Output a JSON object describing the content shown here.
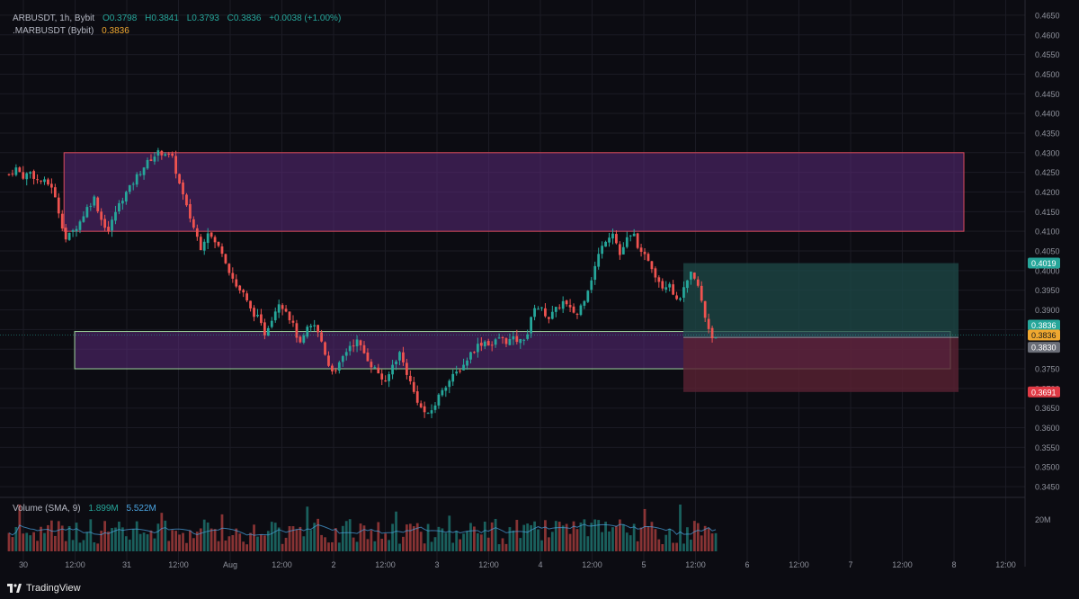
{
  "header": {
    "symbol": "ARBUSDT, 1h, Bybit",
    "open": "O0.3798",
    "high": "H0.3841",
    "low": "L0.3793",
    "close": "C0.3836",
    "change": "+0.0038 (+1.00%)",
    "mark_label": ".MARBUSDT (Bybit)",
    "mark_value": "0.3836"
  },
  "volume_header": {
    "label": "Volume (SMA, 9)",
    "value1": "1.899M",
    "value2": "5.522M"
  },
  "volume_axis_label": "20M",
  "brand": {
    "name": "TradingView"
  },
  "colors": {
    "background": "#0c0c12",
    "up": "#26a69a",
    "down": "#ef5350",
    "zone_fill": "#5b2a7a",
    "profit_fill": "#1e4a48",
    "loss_fill": "#5a2233",
    "tag_green": "#26a69a",
    "tag_orange": "#f0a830",
    "tag_gray": "#6b6e78",
    "tag_red": "#e03a45"
  },
  "chart_data": {
    "type": "candlestick",
    "timeframe": "1h",
    "ylim": [
      0.3425,
      0.4675
    ],
    "y_ticks": [
      "0.4650",
      "0.4600",
      "0.4550",
      "0.4500",
      "0.4450",
      "0.4400",
      "0.4350",
      "0.4300",
      "0.4250",
      "0.4200",
      "0.4150",
      "0.4100",
      "0.4050",
      "0.4000",
      "0.3950",
      "0.3900",
      "0.3850",
      "0.3800",
      "0.3750",
      "0.3700",
      "0.3650",
      "0.3600",
      "0.3550",
      "0.3500",
      "0.3450"
    ],
    "x_ticks": [
      "30",
      "12:00",
      "31",
      "12:00",
      "Aug",
      "12:00",
      "2",
      "12:00",
      "3",
      "12:00",
      "4",
      "12:00",
      "5",
      "12:00",
      "6",
      "12:00",
      "7",
      "12:00",
      "8",
      "12:00"
    ],
    "close_path": [
      [
        0,
        0.4245
      ],
      [
        2,
        0.426
      ],
      [
        4,
        0.424
      ],
      [
        6,
        0.425
      ],
      [
        8,
        0.423
      ],
      [
        10,
        0.4225
      ],
      [
        12,
        0.4215
      ],
      [
        14,
        0.415
      ],
      [
        16,
        0.408
      ],
      [
        18,
        0.41
      ],
      [
        20,
        0.4125
      ],
      [
        22,
        0.416
      ],
      [
        24,
        0.4185
      ],
      [
        26,
        0.413
      ],
      [
        28,
        0.41
      ],
      [
        30,
        0.415
      ],
      [
        32,
        0.4185
      ],
      [
        34,
        0.421
      ],
      [
        36,
        0.424
      ],
      [
        38,
        0.4265
      ],
      [
        40,
        0.4285
      ],
      [
        42,
        0.43
      ],
      [
        44,
        0.43
      ],
      [
        46,
        0.4285
      ],
      [
        48,
        0.422
      ],
      [
        50,
        0.416
      ],
      [
        52,
        0.411
      ],
      [
        54,
        0.406
      ],
      [
        56,
        0.41
      ],
      [
        58,
        0.407
      ],
      [
        60,
        0.405
      ],
      [
        62,
        0.4
      ],
      [
        64,
        0.396
      ],
      [
        66,
        0.394
      ],
      [
        68,
        0.39
      ],
      [
        70,
        0.388
      ],
      [
        72,
        0.384
      ],
      [
        74,
        0.388
      ],
      [
        76,
        0.392
      ],
      [
        78,
        0.39
      ],
      [
        80,
        0.386
      ],
      [
        82,
        0.381
      ],
      [
        84,
        0.385
      ],
      [
        86,
        0.386
      ],
      [
        88,
        0.382
      ],
      [
        90,
        0.376
      ],
      [
        92,
        0.374
      ],
      [
        94,
        0.378
      ],
      [
        96,
        0.381
      ],
      [
        98,
        0.382
      ],
      [
        100,
        0.379
      ],
      [
        102,
        0.376
      ],
      [
        104,
        0.374
      ],
      [
        106,
        0.371
      ],
      [
        108,
        0.376
      ],
      [
        110,
        0.379
      ],
      [
        112,
        0.374
      ],
      [
        114,
        0.369
      ],
      [
        116,
        0.365
      ],
      [
        118,
        0.363
      ],
      [
        120,
        0.366
      ],
      [
        122,
        0.37
      ],
      [
        124,
        0.372
      ],
      [
        126,
        0.374
      ],
      [
        128,
        0.376
      ],
      [
        130,
        0.379
      ],
      [
        132,
        0.381
      ],
      [
        134,
        0.382
      ],
      [
        136,
        0.381
      ],
      [
        138,
        0.383
      ],
      [
        140,
        0.382
      ],
      [
        142,
        0.3825
      ],
      [
        144,
        0.382
      ],
      [
        146,
        0.384
      ],
      [
        148,
        0.391
      ],
      [
        150,
        0.39
      ],
      [
        152,
        0.388
      ],
      [
        154,
        0.39
      ],
      [
        156,
        0.392
      ],
      [
        158,
        0.39
      ],
      [
        160,
        0.389
      ],
      [
        162,
        0.393
      ],
      [
        164,
        0.398
      ],
      [
        166,
        0.404
      ],
      [
        168,
        0.408
      ],
      [
        170,
        0.41
      ],
      [
        172,
        0.404
      ],
      [
        174,
        0.408
      ],
      [
        176,
        0.409
      ],
      [
        178,
        0.404
      ],
      [
        180,
        0.403
      ],
      [
        182,
        0.399
      ],
      [
        184,
        0.396
      ],
      [
        186,
        0.397
      ],
      [
        188,
        0.392
      ],
      [
        190,
        0.395
      ],
      [
        192,
        0.399
      ],
      [
        194,
        0.396
      ],
      [
        196,
        0.388
      ],
      [
        198,
        0.383
      ],
      [
        199,
        0.3836
      ]
    ],
    "zones": [
      {
        "type": "resistance",
        "from_bar": 16,
        "to_bar": "future",
        "y_top": 0.43,
        "y_bottom": 0.41
      },
      {
        "type": "support",
        "from_bar": 19,
        "to_bar": "future",
        "y_top": 0.3845,
        "y_bottom": 0.375
      }
    ],
    "position": {
      "side": "long",
      "entry": 0.383,
      "target": 0.4019,
      "stop": 0.3691
    },
    "price_tags": [
      {
        "value": "0.4019",
        "kind": "target"
      },
      {
        "value": "0.3836",
        "kind": "last"
      },
      {
        "value": "0.3836",
        "kind": "mark"
      },
      {
        "value": "0.3830",
        "kind": "entry"
      },
      {
        "value": "0.3691",
        "kind": "stop"
      }
    ],
    "volume_note": "hourly volume bars, peak approx 18M"
  }
}
